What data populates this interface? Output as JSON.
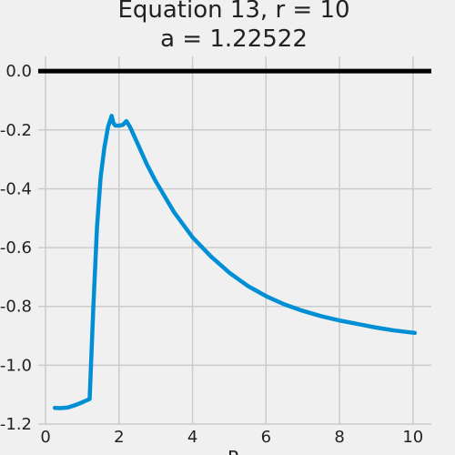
{
  "chart_data": {
    "type": "line",
    "title": "Equation 13, r = 10",
    "subtitle": "a = 1.22522",
    "xlabel": "R",
    "ylabel": "",
    "xlim": [
      -0.2,
      10.5
    ],
    "ylim": [
      -1.2,
      0.05
    ],
    "x_ticks": [
      0,
      2,
      4,
      6,
      8,
      10
    ],
    "y_ticks": [
      0.0,
      -0.2,
      -0.4,
      -0.6,
      -0.8,
      -1.0,
      -1.2
    ],
    "x_tick_labels": [
      "0",
      "2",
      "4",
      "6",
      "8",
      "10"
    ],
    "y_tick_labels": [
      "0.0",
      "-0.2",
      "-0.4",
      "-0.6",
      "-0.8",
      "-1.0",
      "-1.2"
    ],
    "grid": true,
    "reference_line": {
      "y": 0.0,
      "color": "#000000"
    },
    "series": [
      {
        "color": "#008fd5",
        "x": [
          0.25,
          0.4,
          0.6,
          0.8,
          1.0,
          1.2,
          1.3,
          1.4,
          1.5,
          1.6,
          1.7,
          1.8,
          1.85,
          1.9,
          2.0,
          2.1,
          2.2,
          2.3,
          2.5,
          2.75,
          3.0,
          3.5,
          4.0,
          4.5,
          5.0,
          5.5,
          6.0,
          6.5,
          7.0,
          7.5,
          8.0,
          8.5,
          9.0,
          9.5,
          10.05
        ],
        "y": [
          -1.145,
          -1.146,
          -1.144,
          -1.136,
          -1.126,
          -1.115,
          -0.8,
          -0.53,
          -0.36,
          -0.26,
          -0.19,
          -0.152,
          -0.178,
          -0.185,
          -0.185,
          -0.183,
          -0.17,
          -0.19,
          -0.245,
          -0.315,
          -0.375,
          -0.48,
          -0.565,
          -0.63,
          -0.685,
          -0.73,
          -0.765,
          -0.793,
          -0.815,
          -0.833,
          -0.848,
          -0.86,
          -0.872,
          -0.882,
          -0.89
        ]
      }
    ]
  }
}
